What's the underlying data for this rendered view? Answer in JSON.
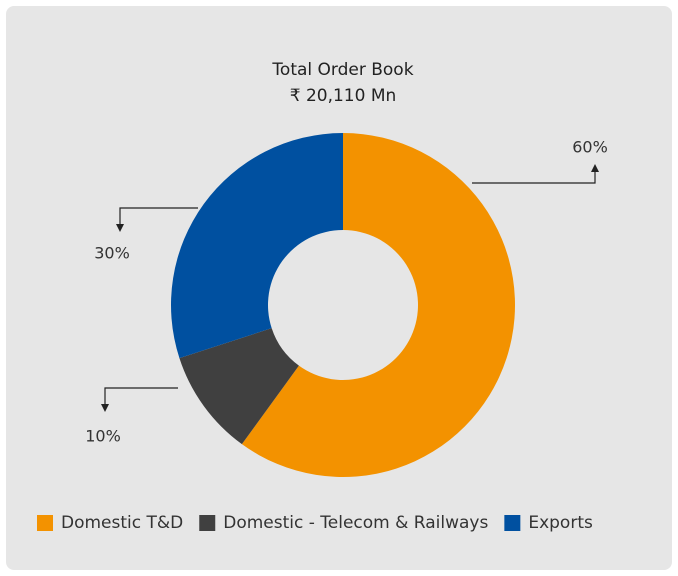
{
  "chart_data": {
    "type": "donut",
    "title": "Total Order Book",
    "subtitle": "₹ 20,110 Mn",
    "categories": [
      "Domestic T&D",
      "Domestic - Telecom & Railways",
      "Exports"
    ],
    "values": [
      60,
      10,
      30
    ],
    "value_labels": [
      "60%",
      "10%",
      "30%"
    ],
    "colors": [
      "#f39200",
      "#404040",
      "#0050a0"
    ],
    "legend": "bottom"
  }
}
